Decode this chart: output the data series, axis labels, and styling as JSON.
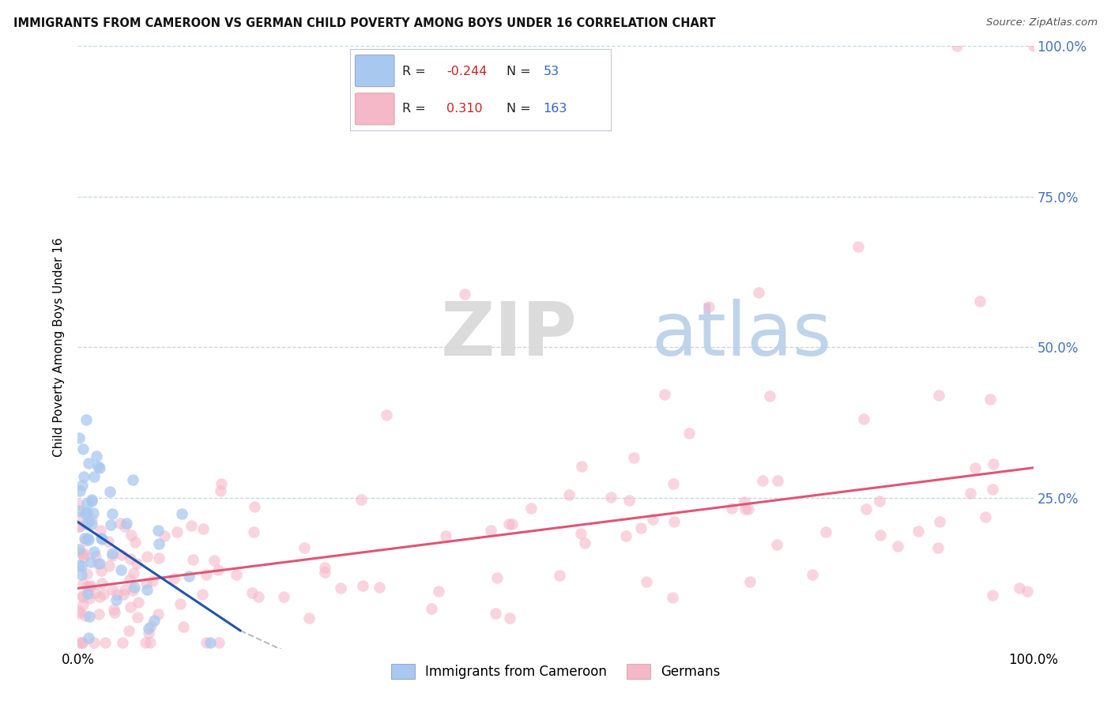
{
  "title": "IMMIGRANTS FROM CAMEROON VS GERMAN CHILD POVERTY AMONG BOYS UNDER 16 CORRELATION CHART",
  "source": "Source: ZipAtlas.com",
  "ylabel": "Child Poverty Among Boys Under 16",
  "r_blue": -0.244,
  "n_blue": 53,
  "r_pink": 0.31,
  "n_pink": 163,
  "blue_color": "#a8c8f0",
  "pink_color": "#f5b8c8",
  "blue_line_color": "#2255aa",
  "pink_line_color": "#e05575",
  "background_color": "#ffffff",
  "grid_color": "#c8d4e0",
  "legend_labels": [
    "Immigrants from Cameroon",
    "Germans"
  ],
  "ytick_labels": [
    "25.0%",
    "50.0%",
    "75.0%",
    "100.0%"
  ],
  "ytick_values": [
    25,
    50,
    75,
    100
  ],
  "xtick_labels": [
    "0.0%",
    "100.0%"
  ],
  "xtick_values": [
    0,
    100
  ]
}
